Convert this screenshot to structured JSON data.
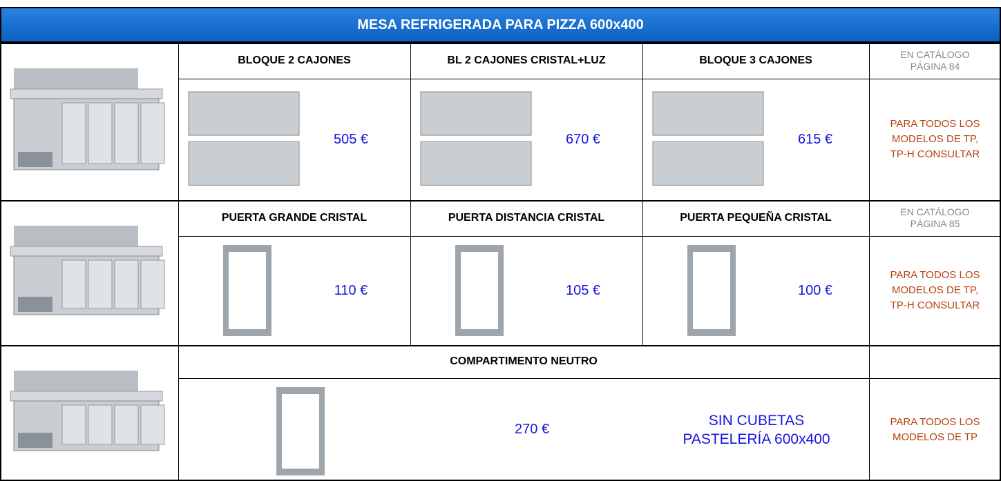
{
  "title": "MESA REFRIGERADA PARA PIZZA 600x400",
  "sections": [
    {
      "options": [
        {
          "name": "BLOQUE 2 CAJONES",
          "price": "505 €"
        },
        {
          "name": "BL 2 CAJONES CRISTAL+LUZ",
          "price": "670 €"
        },
        {
          "name": "BLOQUE 3 CAJONES",
          "price": "615 €"
        }
      ],
      "catalog": [
        "EN CATÁLOGO",
        "PÁGINA 84"
      ],
      "note": [
        "PARA TODOS LOS",
        "MODELOS DE TP,",
        "TP-H CONSULTAR"
      ]
    },
    {
      "options": [
        {
          "name": "PUERTA GRANDE CRISTAL",
          "price": "110 €"
        },
        {
          "name": "PUERTA DISTANCIA CRISTAL",
          "price": "105 €"
        },
        {
          "name": "PUERTA PEQUEÑA CRISTAL",
          "price": "100 €"
        }
      ],
      "catalog": [
        "EN CATÁLOGO",
        "PÁGINA 85"
      ],
      "note": [
        "PARA TODOS LOS",
        "MODELOS DE TP,",
        "TP-H CONSULTAR"
      ]
    },
    {
      "options": [
        {
          "name": "COMPARTIMENTO NEUTRO",
          "price": "270 €",
          "remark": [
            "SIN CUBETAS",
            "PASTELERÍA 600x400"
          ]
        }
      ],
      "note": [
        "PARA TODOS LOS",
        "MODELOS DE TP"
      ]
    }
  ]
}
